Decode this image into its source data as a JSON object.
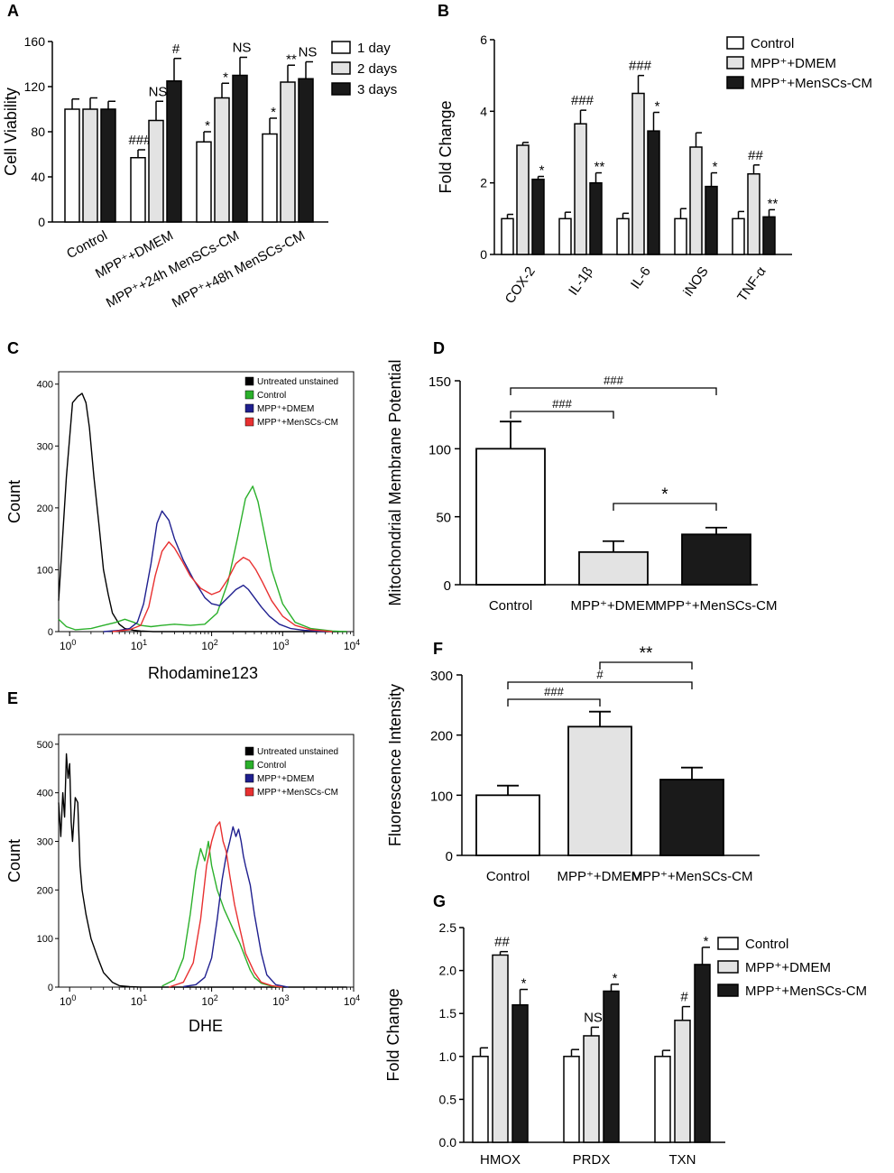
{
  "chart_data": [
    {
      "panel": "A",
      "type": "bar",
      "ylabel": "Cell Viability",
      "ylim": [
        0,
        160
      ],
      "yticks": [
        "0",
        "40",
        "80",
        "120",
        "160"
      ],
      "categories": [
        "Control",
        "MPP⁺+DMEM",
        "MPP⁺+24h MenSCs-CM",
        "MPP⁺+48h MenSCs-CM"
      ],
      "series": [
        {
          "name": "1 day",
          "color": "#ffffff",
          "values": [
            100,
            57,
            71,
            78
          ],
          "errors": [
            9,
            7,
            9,
            14
          ]
        },
        {
          "name": "2 days",
          "color": "#e3e3e3",
          "values": [
            100,
            90,
            110,
            124
          ],
          "errors": [
            10,
            17,
            13,
            15
          ]
        },
        {
          "name": "3 days",
          "color": "#1a1a1a",
          "values": [
            100,
            125,
            130,
            127
          ],
          "errors": [
            7,
            20,
            16,
            15
          ]
        }
      ],
      "annotations": [
        {
          "group": 1,
          "series": 0,
          "text": "###"
        },
        {
          "group": 1,
          "series": 1,
          "text": "NS"
        },
        {
          "group": 1,
          "series": 2,
          "text": "#"
        },
        {
          "group": 2,
          "series": 0,
          "text": "*"
        },
        {
          "group": 2,
          "series": 1,
          "text": "*"
        },
        {
          "group": 2,
          "series": 2,
          "text": "NS"
        },
        {
          "group": 3,
          "series": 0,
          "text": "*"
        },
        {
          "group": 3,
          "series": 1,
          "text": "**"
        },
        {
          "group": 3,
          "series": 2,
          "text": "NS"
        }
      ]
    },
    {
      "panel": "B",
      "type": "bar",
      "ylabel": "Fold Change",
      "ylim": [
        0,
        6
      ],
      "yticks": [
        "0",
        "2",
        "4",
        "6"
      ],
      "categories": [
        "COX-2",
        "IL-1β",
        "IL-6",
        "iNOS",
        "TNF-α"
      ],
      "series": [
        {
          "name": "Control",
          "color": "#ffffff",
          "values": [
            1.0,
            1.0,
            1.0,
            1.0,
            1.0
          ],
          "errors": [
            0.12,
            0.18,
            0.15,
            0.28,
            0.2
          ]
        },
        {
          "name": "MPP⁺+DMEM",
          "color": "#e3e3e3",
          "values": [
            3.05,
            3.65,
            4.5,
            3.0,
            2.25
          ],
          "errors": [
            0.08,
            0.38,
            0.5,
            0.4,
            0.25
          ]
        },
        {
          "name": "MPP⁺+MenSCs-CM",
          "color": "#1a1a1a",
          "values": [
            2.1,
            2.0,
            3.45,
            1.9,
            1.05
          ],
          "errors": [
            0.08,
            0.28,
            0.52,
            0.38,
            0.2
          ]
        }
      ],
      "annotations": [
        {
          "group": 0,
          "series": 2,
          "text": "*"
        },
        {
          "group": 1,
          "series": 1,
          "text": "###"
        },
        {
          "group": 1,
          "series": 2,
          "text": "**"
        },
        {
          "group": 2,
          "series": 1,
          "text": "###"
        },
        {
          "group": 2,
          "series": 2,
          "text": "*"
        },
        {
          "group": 3,
          "series": 2,
          "text": "*"
        },
        {
          "group": 4,
          "series": 1,
          "text": "##"
        },
        {
          "group": 4,
          "series": 2,
          "text": "**"
        }
      ]
    },
    {
      "panel": "C",
      "type": "line",
      "xlabel": "Rhodamine123",
      "ylabel": "Count",
      "xscale": "log",
      "xlim": [
        0.7,
        10000
      ],
      "ylim": [
        0,
        420
      ],
      "yticks": [
        "0",
        "100",
        "200",
        "300",
        "400"
      ],
      "xticks": [
        {
          "value": 1,
          "base": "10",
          "exp": "0"
        },
        {
          "value": 10,
          "base": "10",
          "exp": "1"
        },
        {
          "value": 100,
          "base": "10",
          "exp": "2"
        },
        {
          "value": 1000,
          "base": "10",
          "exp": "3"
        },
        {
          "value": 10000,
          "base": "10",
          "exp": "4"
        }
      ],
      "series": [
        {
          "name": "Untreated unstained",
          "color": "#000000",
          "x": [
            0.7,
            0.9,
            1.1,
            1.3,
            1.5,
            1.7,
            1.9,
            2.2,
            2.6,
            3.0,
            3.5,
            4.0,
            5.0,
            6.0,
            8.0,
            10,
            15,
            30,
            100,
            1000,
            8000
          ],
          "y": [
            50,
            250,
            370,
            380,
            385,
            370,
            330,
            250,
            170,
            100,
            60,
            30,
            12,
            5,
            2,
            1,
            0,
            0,
            0,
            0,
            0
          ]
        },
        {
          "name": "Control",
          "color": "#2bb02b",
          "x": [
            0.7,
            0.9,
            1.2,
            2,
            3,
            4.5,
            6,
            8,
            10,
            14,
            20,
            30,
            50,
            80,
            120,
            170,
            230,
            300,
            380,
            450,
            550,
            700,
            1000,
            1500,
            2500,
            5000,
            8000
          ],
          "y": [
            20,
            8,
            3,
            5,
            10,
            15,
            20,
            15,
            10,
            8,
            10,
            12,
            10,
            12,
            30,
            80,
            150,
            215,
            235,
            210,
            160,
            100,
            45,
            15,
            5,
            1,
            0
          ]
        },
        {
          "name": "MPP⁺+DMEM",
          "color": "#1f1f8f",
          "x": [
            3,
            5,
            7,
            9,
            11,
            14,
            17,
            20,
            25,
            30,
            40,
            55,
            80,
            100,
            130,
            170,
            220,
            280,
            330,
            400,
            500,
            650,
            900,
            1300,
            2000,
            4000
          ],
          "y": [
            0,
            2,
            5,
            15,
            45,
            110,
            175,
            195,
            180,
            150,
            115,
            85,
            55,
            45,
            42,
            55,
            68,
            75,
            68,
            55,
            40,
            25,
            12,
            5,
            2,
            0
          ]
        },
        {
          "name": "MPP⁺+MenSCs-CM",
          "color": "#e83030",
          "x": [
            4,
            7,
            10,
            13,
            16,
            20,
            25,
            30,
            38,
            50,
            70,
            100,
            130,
            170,
            220,
            280,
            340,
            420,
            520,
            700,
            1000,
            1500,
            2500,
            5000
          ],
          "y": [
            0,
            3,
            10,
            40,
            90,
            130,
            145,
            135,
            115,
            90,
            70,
            60,
            65,
            85,
            110,
            120,
            115,
            100,
            80,
            50,
            25,
            10,
            3,
            0
          ]
        }
      ]
    },
    {
      "panel": "D",
      "type": "bar",
      "ylabel": "Mitochondrial Membrane Potential",
      "ylim": [
        0,
        150
      ],
      "yticks": [
        "0",
        "50",
        "100",
        "150"
      ],
      "categories": [
        "Control",
        "MPP⁺+DMEM",
        "MPP⁺+MenSCs-CM"
      ],
      "values": [
        100,
        24,
        37
      ],
      "errors": [
        20,
        8,
        5
      ],
      "colors": [
        "#ffffff",
        "#e3e3e3",
        "#1a1a1a"
      ],
      "brackets": [
        {
          "from": 0,
          "to": 2,
          "text": "###"
        },
        {
          "from": 0,
          "to": 1,
          "text": "###"
        },
        {
          "from": 1,
          "to": 2,
          "text": "*"
        }
      ]
    },
    {
      "panel": "E",
      "type": "line",
      "xlabel": "DHE",
      "ylabel": "Count",
      "xscale": "log",
      "xlim": [
        0.7,
        10000
      ],
      "ylim": [
        0,
        520
      ],
      "yticks": [
        "0",
        "100",
        "200",
        "300",
        "400",
        "500"
      ],
      "xticks": [
        {
          "value": 1,
          "base": "10",
          "exp": "0"
        },
        {
          "value": 10,
          "base": "10",
          "exp": "1"
        },
        {
          "value": 100,
          "base": "10",
          "exp": "2"
        },
        {
          "value": 1000,
          "base": "10",
          "exp": "3"
        },
        {
          "value": 10000,
          "base": "10",
          "exp": "4"
        }
      ],
      "series": [
        {
          "name": "Untreated unstained",
          "color": "#000000",
          "x": [
            0.7,
            0.75,
            0.8,
            0.85,
            0.9,
            0.95,
            1.0,
            1.05,
            1.1,
            1.2,
            1.3,
            1.4,
            1.5,
            1.7,
            2.0,
            2.5,
            3.0,
            4.0,
            5.0,
            7.0,
            10,
            50,
            1000,
            8000
          ],
          "y": [
            380,
            310,
            400,
            350,
            480,
            430,
            460,
            340,
            300,
            390,
            380,
            250,
            200,
            150,
            100,
            60,
            30,
            10,
            3,
            1,
            0,
            0,
            0,
            0
          ]
        },
        {
          "name": "Control",
          "color": "#2bb02b",
          "x": [
            20,
            30,
            40,
            50,
            60,
            70,
            80,
            90,
            100,
            120,
            150,
            200,
            250,
            300,
            350,
            400,
            500,
            700,
            1000
          ],
          "y": [
            2,
            15,
            60,
            150,
            240,
            285,
            260,
            300,
            250,
            200,
            160,
            120,
            90,
            60,
            35,
            20,
            8,
            2,
            0
          ]
        },
        {
          "name": "MPP⁺+DMEM",
          "color": "#1f1f8f",
          "x": [
            40,
            60,
            80,
            100,
            120,
            140,
            160,
            180,
            200,
            220,
            240,
            260,
            280,
            300,
            350,
            400,
            500,
            600,
            800,
            1200
          ],
          "y": [
            1,
            5,
            20,
            60,
            140,
            220,
            270,
            300,
            330,
            310,
            325,
            300,
            270,
            250,
            210,
            150,
            70,
            25,
            5,
            0
          ]
        },
        {
          "name": "MPP⁺+MenSCs-CM",
          "color": "#e83030",
          "x": [
            25,
            40,
            55,
            70,
            85,
            100,
            115,
            130,
            145,
            160,
            180,
            210,
            250,
            300,
            400,
            500,
            700,
            1000
          ],
          "y": [
            0,
            10,
            50,
            140,
            250,
            300,
            330,
            340,
            300,
            280,
            230,
            170,
            120,
            70,
            30,
            10,
            3,
            0
          ]
        }
      ]
    },
    {
      "panel": "F",
      "type": "bar",
      "ylabel": "Fluorescence Intensity",
      "ylim": [
        0,
        300
      ],
      "yticks": [
        "0",
        "100",
        "200",
        "300"
      ],
      "categories": [
        "Control",
        "MPP⁺+DMEM",
        "MPP⁺+MenSCs-CM"
      ],
      "values": [
        100,
        214,
        126
      ],
      "errors": [
        16,
        25,
        20
      ],
      "colors": [
        "#ffffff",
        "#e3e3e3",
        "#1a1a1a"
      ],
      "brackets": [
        {
          "from": 0,
          "to": 2,
          "text": "#"
        },
        {
          "from": 0,
          "to": 1,
          "text": "###"
        },
        {
          "from": 1,
          "to": 2,
          "text": "**"
        }
      ]
    },
    {
      "panel": "G",
      "type": "bar",
      "ylabel": "Fold Change",
      "ylim": [
        0,
        2.5
      ],
      "yticks": [
        "0.0",
        "0.5",
        "1.0",
        "1.5",
        "2.0",
        "2.5"
      ],
      "categories": [
        "HMOX",
        "PRDX",
        "TXN"
      ],
      "series": [
        {
          "name": "Control",
          "color": "#ffffff",
          "values": [
            1.0,
            1.0,
            1.0
          ],
          "errors": [
            0.1,
            0.08,
            0.07
          ]
        },
        {
          "name": "MPP⁺+DMEM",
          "color": "#e3e3e3",
          "values": [
            2.18,
            1.24,
            1.42
          ],
          "errors": [
            0.04,
            0.1,
            0.16
          ]
        },
        {
          "name": "MPP⁺+MenSCs-CM",
          "color": "#1a1a1a",
          "values": [
            1.6,
            1.76,
            2.07
          ],
          "errors": [
            0.18,
            0.08,
            0.2
          ]
        }
      ],
      "annotations": [
        {
          "group": 0,
          "series": 1,
          "text": "##"
        },
        {
          "group": 0,
          "series": 2,
          "text": "*"
        },
        {
          "group": 1,
          "series": 1,
          "text": "NS"
        },
        {
          "group": 1,
          "series": 2,
          "text": "*"
        },
        {
          "group": 2,
          "series": 1,
          "text": "#"
        },
        {
          "group": 2,
          "series": 2,
          "text": "*"
        }
      ]
    }
  ]
}
